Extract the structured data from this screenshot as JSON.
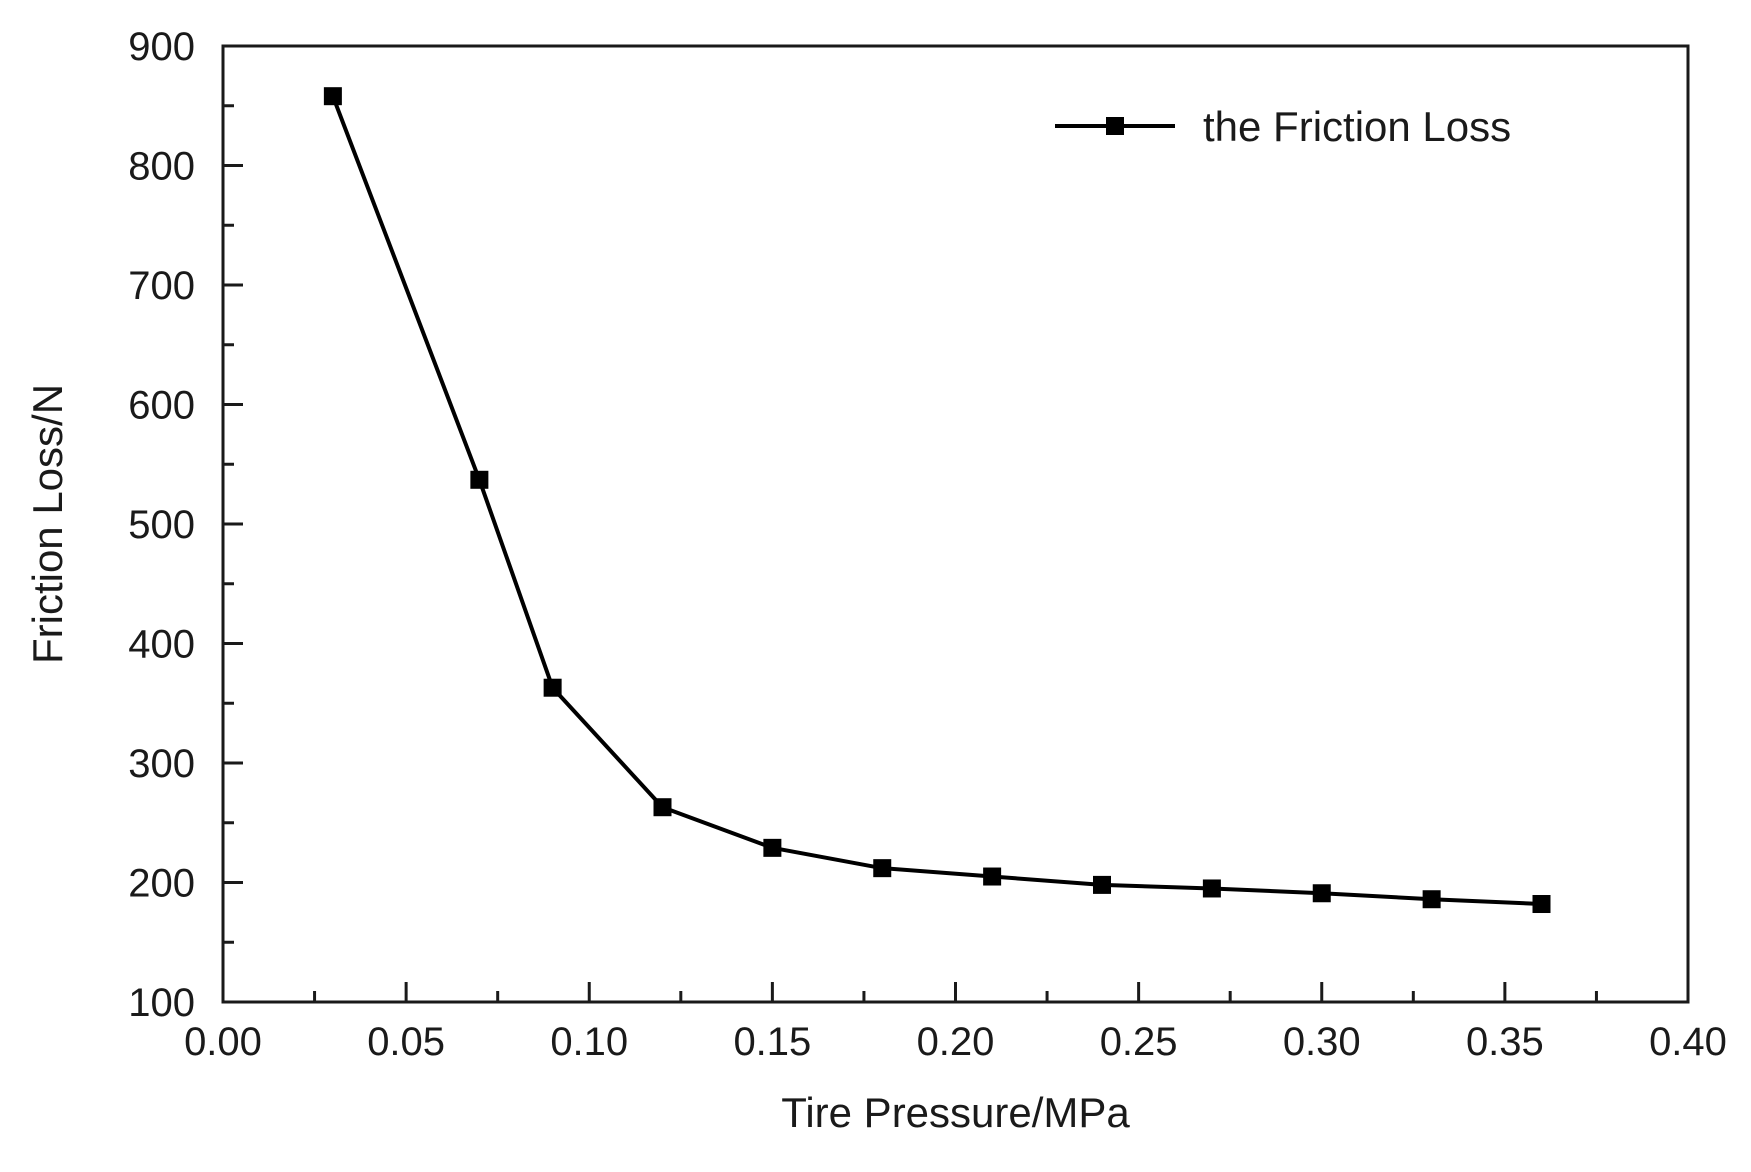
{
  "chart_data": {
    "type": "line",
    "title": "",
    "xlabel": "Tire Pressure/MPa",
    "ylabel": "Friction Loss/N",
    "xlim": [
      0.0,
      0.4
    ],
    "ylim": [
      100,
      900
    ],
    "x_ticks": [
      "0.00",
      "0.05",
      "0.10",
      "0.15",
      "0.20",
      "0.25",
      "0.30",
      "0.35",
      "0.40"
    ],
    "y_ticks": [
      "100",
      "200",
      "300",
      "400",
      "500",
      "600",
      "700",
      "800",
      "900"
    ],
    "grid": false,
    "legend_position": "top-right",
    "series": [
      {
        "name": "the Friction Loss",
        "marker": "square",
        "color": "#000000",
        "x": [
          0.03,
          0.07,
          0.09,
          0.12,
          0.15,
          0.18,
          0.21,
          0.24,
          0.27,
          0.3,
          0.33,
          0.36
        ],
        "values": [
          858,
          537,
          363,
          263,
          229,
          212,
          205,
          198,
          195,
          191,
          186,
          182
        ]
      }
    ]
  }
}
